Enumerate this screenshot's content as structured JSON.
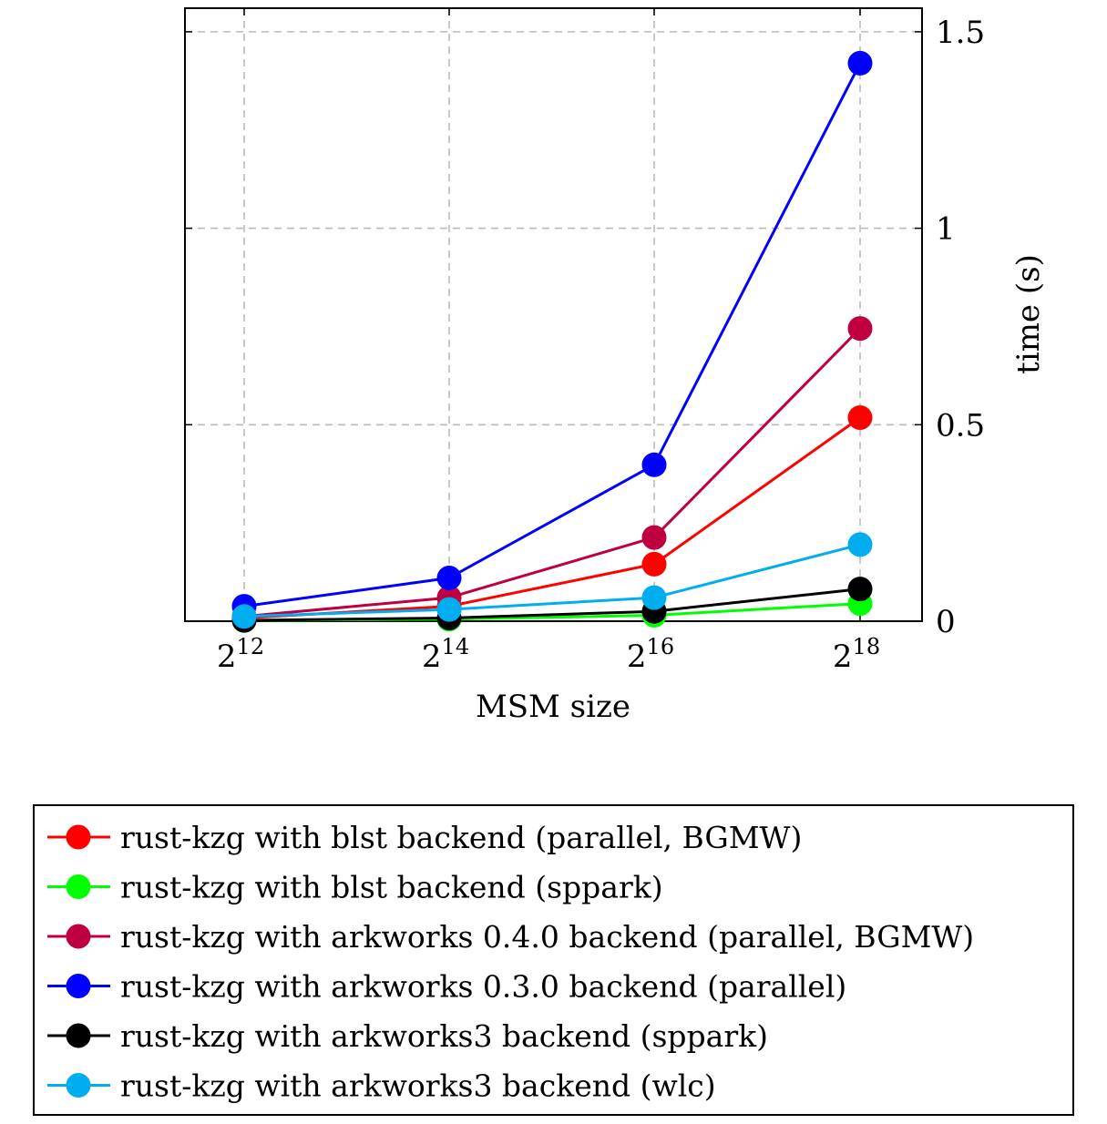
{
  "chart_data": {
    "type": "line",
    "title": "",
    "xlabel": "MSM size",
    "ylabel": "time (s)",
    "x_ticks": [
      {
        "base": "2",
        "exp": "12"
      },
      {
        "base": "2",
        "exp": "14"
      },
      {
        "base": "2",
        "exp": "16"
      },
      {
        "base": "2",
        "exp": "18"
      }
    ],
    "y_ticks": [
      "0",
      "0.5",
      "1",
      "1.5"
    ],
    "y_tick_values": [
      0,
      0.5,
      1,
      1.5
    ],
    "ylim": [
      0,
      1.56
    ],
    "grid": true,
    "y_axis_side": "right",
    "legend_position": "below",
    "series": [
      {
        "name": "rust-kzg with blst backend (parallel, BGMW)",
        "color": "#ff0000",
        "values": [
          0.008,
          0.038,
          0.145,
          0.518
        ]
      },
      {
        "name": "rust-kzg with blst backend (sppark)",
        "color": "#00ff00",
        "values": [
          0.002,
          0.005,
          0.015,
          0.045
        ]
      },
      {
        "name": "rust-kzg with arkworks 0.4.0 backend (parallel, BGMW)",
        "color": "#bf0040",
        "values": [
          0.012,
          0.06,
          0.213,
          0.745
        ]
      },
      {
        "name": "rust-kzg with arkworks 0.3.0 backend (parallel)",
        "color": "#0000ff",
        "values": [
          0.038,
          0.11,
          0.398,
          1.42
        ]
      },
      {
        "name": "rust-kzg with arkworks3 backend (sppark)",
        "color": "#000000",
        "values": [
          0.002,
          0.008,
          0.025,
          0.082
        ]
      },
      {
        "name": "rust-kzg with arkworks3 backend (wlc)",
        "color": "#00aeef",
        "values": [
          0.012,
          0.03,
          0.06,
          0.195
        ]
      }
    ]
  }
}
